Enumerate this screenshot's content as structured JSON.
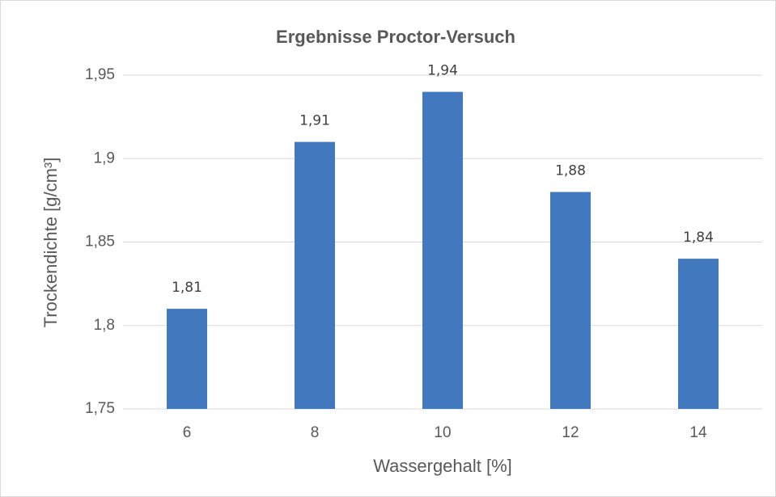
{
  "chart_data": {
    "type": "bar",
    "title": "Ergebnisse Proctor-Versuch",
    "x_label": "Wassergehalt [%]",
    "y_label": "Trockendichte [g/cm³]",
    "categories": [
      "6",
      "8",
      "10",
      "12",
      "14"
    ],
    "values": [
      1.81,
      1.91,
      1.94,
      1.88,
      1.84
    ],
    "value_labels": [
      "1,81",
      "1,91",
      "1,94",
      "1,88",
      "1,84"
    ],
    "color": "#4178be",
    "ylim": [
      1.75,
      1.95
    ],
    "yticks": [
      {
        "value": 1.75,
        "label": "1,75"
      },
      {
        "value": 1.8,
        "label": "1,8"
      },
      {
        "value": 1.85,
        "label": "1,85"
      },
      {
        "value": 1.9,
        "label": "1,9"
      },
      {
        "value": 1.95,
        "label": "1,95"
      }
    ],
    "grid": true
  }
}
